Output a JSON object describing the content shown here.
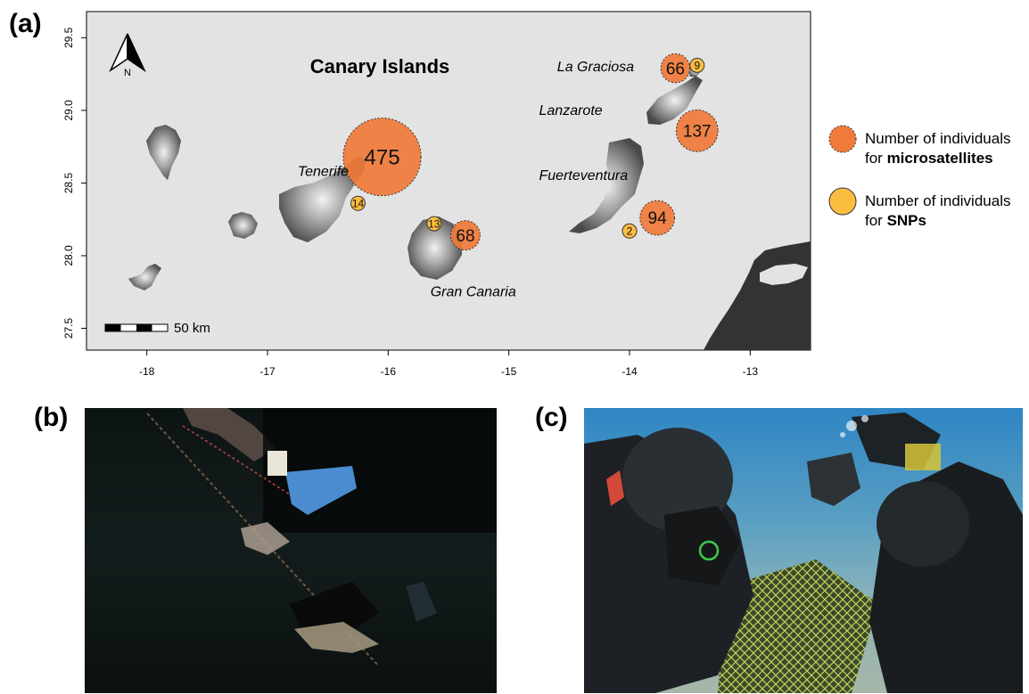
{
  "panels": {
    "a": "(a)",
    "b": "(b)",
    "c": "(c)"
  },
  "map": {
    "title": "Canary Islands",
    "north_label": "N",
    "scalebar_label": "50 km",
    "x_ticks": [
      "-18",
      "-17",
      "-16",
      "-15",
      "-14",
      "-13"
    ],
    "y_ticks": [
      "29.5",
      "29.0",
      "28.5",
      "28.0",
      "27.5"
    ],
    "xlim": [
      -18.5,
      -12.5
    ],
    "ylim": [
      27.35,
      29.68
    ],
    "island_labels": [
      {
        "name": "La Graciosa",
        "lon": -14.6,
        "lat": 29.27
      },
      {
        "name": "Lanzarote",
        "lon": -14.75,
        "lat": 28.97
      },
      {
        "name": "Tenerife",
        "lon": -16.75,
        "lat": 28.55
      },
      {
        "name": "Fuerteventura",
        "lon": -14.75,
        "lat": 28.52
      },
      {
        "name": "Gran Canaria",
        "lon": -15.65,
        "lat": 27.72
      }
    ],
    "bubbles": [
      {
        "island": "Tenerife",
        "type": "microsatellites",
        "value": 475,
        "lon": -16.05,
        "lat": 28.68
      },
      {
        "island": "Tenerife",
        "type": "SNPs",
        "value": 14,
        "lon": -16.25,
        "lat": 28.36
      },
      {
        "island": "Gran Canaria",
        "type": "SNPs",
        "value": 13,
        "lon": -15.62,
        "lat": 28.22
      },
      {
        "island": "Gran Canaria",
        "type": "microsatellites",
        "value": 68,
        "lon": -15.36,
        "lat": 28.14
      },
      {
        "island": "Fuerteventura",
        "type": "SNPs",
        "value": 2,
        "lon": -14.0,
        "lat": 28.17
      },
      {
        "island": "Fuerteventura",
        "type": "microsatellites",
        "value": 94,
        "lon": -13.77,
        "lat": 28.26
      },
      {
        "island": "Lanzarote",
        "type": "microsatellites",
        "value": 137,
        "lon": -13.44,
        "lat": 28.86
      },
      {
        "island": "La Graciosa",
        "type": "microsatellites",
        "value": 66,
        "lon": -13.62,
        "lat": 29.29
      },
      {
        "island": "La Graciosa",
        "type": "SNPs",
        "value": 9,
        "lon": -13.44,
        "lat": 29.31
      }
    ],
    "colors": {
      "microsatellites": "#f07a3a",
      "snps": "#fbbd3f",
      "sea": "#e3e3e3",
      "land": "#444444",
      "africa": "#333333"
    }
  },
  "legend": {
    "micro_line1": "Number of individuals",
    "micro_prefix": "for ",
    "micro_bold": "microsatellites",
    "snp_line1": "Number of individuals",
    "snp_prefix": "for ",
    "snp_bold": "SNPs"
  }
}
